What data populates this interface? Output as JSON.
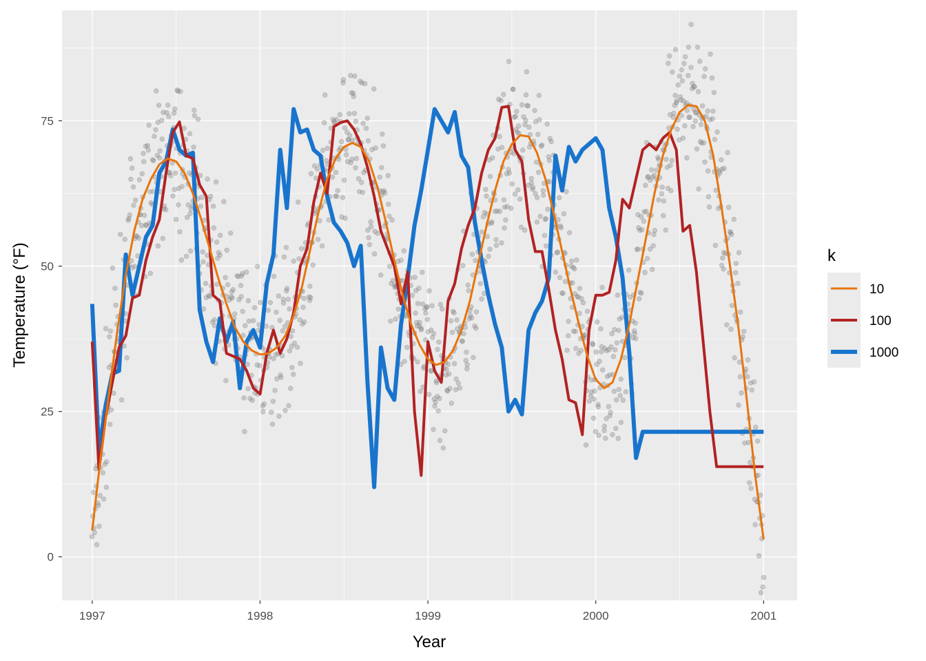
{
  "chart_data": {
    "type": "line",
    "title": "",
    "xlabel": "Year",
    "ylabel": "Temperature (°F)",
    "xlim": [
      1996.82,
      2001.2
    ],
    "ylim": [
      -7.5,
      94
    ],
    "x_ticks": [
      1997,
      1998,
      1999,
      2000,
      2001
    ],
    "x_tick_labels": [
      "1997",
      "1998",
      "1999",
      "2000",
      "2001"
    ],
    "y_ticks": [
      0,
      25,
      50,
      75
    ],
    "y_tick_labels": [
      "0",
      "25",
      "50",
      "75"
    ],
    "grid": true,
    "legend": {
      "title": "k",
      "placement": "right",
      "entries": [
        "10",
        "100",
        "1000"
      ]
    },
    "colors": {
      "panel": "#ebebeb",
      "grid_major": "#ffffff",
      "points": "#808080",
      "k10": "#e8740c",
      "k100": "#b22222",
      "k1000": "#1874cd"
    },
    "series": [
      {
        "name": "10",
        "color": "#e8740c",
        "x": [
          1997.0,
          1997.05,
          1997.1,
          1997.15,
          1997.2,
          1997.25,
          1997.3,
          1997.35,
          1997.4,
          1997.45,
          1997.5,
          1997.55,
          1997.6,
          1997.65,
          1997.7,
          1997.75,
          1997.8,
          1997.85,
          1997.9,
          1997.95,
          1998.0,
          1998.05,
          1998.1,
          1998.15,
          1998.2,
          1998.25,
          1998.3,
          1998.35,
          1998.4,
          1998.45,
          1998.5,
          1998.55,
          1998.6,
          1998.65,
          1998.7,
          1998.75,
          1998.8,
          1998.85,
          1998.9,
          1998.95,
          1999.0,
          1999.05,
          1999.1,
          1999.15,
          1999.2,
          1999.25,
          1999.3,
          1999.35,
          1999.4,
          1999.45,
          1999.5,
          1999.55,
          1999.6,
          1999.65,
          1999.7,
          1999.75,
          1999.8,
          1999.85,
          1999.9,
          1999.95,
          2000.0,
          2000.05,
          2000.1,
          2000.15,
          2000.2,
          2000.25,
          2000.3,
          2000.35,
          2000.4,
          2000.45,
          2000.5,
          2000.55,
          2000.6,
          2000.65,
          2000.7,
          2000.75,
          2000.8,
          2000.85,
          2000.9,
          2000.95,
          2001.0
        ],
        "values": [
          4.5,
          17,
          28,
          39,
          48.5,
          56,
          61.5,
          65,
          67.5,
          68.5,
          68,
          66,
          62.5,
          58,
          53,
          48,
          43.5,
          39.5,
          37,
          35.5,
          34.8,
          35,
          36,
          38,
          41.5,
          46.5,
          53,
          59.5,
          65,
          68.5,
          70.5,
          71.2,
          70.5,
          68,
          63.5,
          57.5,
          51,
          45,
          40,
          36.5,
          34,
          33,
          33.5,
          35.5,
          39,
          44,
          50.5,
          57,
          63,
          68,
          71,
          72.5,
          72.3,
          69.5,
          65,
          59,
          52.5,
          46,
          40,
          34.5,
          30.5,
          29,
          30,
          34,
          40,
          47.5,
          55,
          62.5,
          69,
          73.5,
          76.5,
          77.7,
          77.5,
          75,
          69,
          60,
          50,
          39.5,
          27,
          14,
          3
        ]
      },
      {
        "name": "100",
        "color": "#b22222",
        "x": [
          1997.0,
          1997.04,
          1997.08,
          1997.12,
          1997.16,
          1997.2,
          1997.24,
          1997.28,
          1997.32,
          1997.36,
          1997.4,
          1997.44,
          1997.48,
          1997.52,
          1997.56,
          1997.6,
          1997.64,
          1997.68,
          1997.72,
          1997.76,
          1997.8,
          1997.84,
          1997.88,
          1997.92,
          1997.96,
          1998.0,
          1998.04,
          1998.08,
          1998.12,
          1998.16,
          1998.2,
          1998.24,
          1998.28,
          1998.32,
          1998.36,
          1998.4,
          1998.44,
          1998.48,
          1998.52,
          1998.56,
          1998.6,
          1998.64,
          1998.68,
          1998.72,
          1998.76,
          1998.8,
          1998.84,
          1998.88,
          1998.92,
          1998.96,
          1999.0,
          1999.04,
          1999.08,
          1999.12,
          1999.16,
          1999.2,
          1999.24,
          1999.28,
          1999.32,
          1999.36,
          1999.4,
          1999.44,
          1999.48,
          1999.52,
          1999.56,
          1999.6,
          1999.64,
          1999.68,
          1999.72,
          1999.76,
          1999.8,
          1999.84,
          1999.88,
          1999.92,
          1999.96,
          2000.0,
          2000.04,
          2000.08,
          2000.12,
          2000.16,
          2000.2,
          2000.24,
          2000.28,
          2000.32,
          2000.36,
          2000.4,
          2000.44,
          2000.48,
          2000.52,
          2000.56,
          2000.6,
          2000.64,
          2000.68,
          2000.72,
          2000.76,
          2000.8,
          2000.84,
          2000.88,
          2000.92,
          2000.96,
          2001.0
        ],
        "values": [
          37,
          15,
          24,
          30,
          36,
          38,
          44.5,
          45,
          51,
          55,
          58,
          66,
          73,
          74.8,
          69,
          68.5,
          64,
          62,
          45,
          44,
          35,
          34.5,
          34,
          32,
          29,
          28,
          35,
          39,
          35,
          37.5,
          42,
          50,
          53,
          61,
          66,
          62.5,
          74,
          74.7,
          75,
          73.5,
          71,
          67,
          62,
          56,
          53,
          50,
          43.5,
          49,
          25,
          14,
          37,
          32,
          30,
          44,
          47,
          53,
          57,
          60,
          66,
          70,
          72,
          77.3,
          77.5,
          70,
          68,
          58,
          52.5,
          52.5,
          46,
          39,
          34,
          27,
          26.5,
          21,
          39,
          45,
          45,
          45.5,
          51,
          61.5,
          60,
          65,
          70,
          71,
          70,
          72,
          73,
          70,
          56,
          57,
          49,
          37,
          25,
          15.5,
          15.5,
          15.5,
          15.5,
          15.5,
          15.5,
          15.5,
          15.5
        ]
      },
      {
        "name": "1000",
        "color": "#1874cd",
        "x": [
          1997.0,
          1997.04,
          1997.08,
          1997.12,
          1997.16,
          1997.2,
          1997.24,
          1997.28,
          1997.32,
          1997.36,
          1997.4,
          1997.44,
          1997.48,
          1997.52,
          1997.56,
          1997.6,
          1997.64,
          1997.68,
          1997.72,
          1997.76,
          1997.8,
          1997.84,
          1997.88,
          1997.92,
          1997.96,
          1998.0,
          1998.04,
          1998.08,
          1998.12,
          1998.16,
          1998.2,
          1998.24,
          1998.28,
          1998.32,
          1998.36,
          1998.4,
          1998.44,
          1998.48,
          1998.52,
          1998.56,
          1998.6,
          1998.64,
          1998.68,
          1998.72,
          1998.76,
          1998.8,
          1998.84,
          1998.88,
          1998.92,
          1998.96,
          1999.0,
          1999.04,
          1999.08,
          1999.12,
          1999.16,
          1999.2,
          1999.24,
          1999.28,
          1999.32,
          1999.36,
          1999.4,
          1999.44,
          1999.48,
          1999.52,
          1999.56,
          1999.6,
          1999.64,
          1999.68,
          1999.72,
          1999.76,
          1999.8,
          1999.84,
          1999.88,
          1999.92,
          1999.96,
          2000.0,
          2000.04,
          2000.08,
          2000.12,
          2000.16,
          2000.2,
          2000.24,
          2000.28,
          2000.32,
          2000.36,
          2000.4,
          2000.44,
          2000.48,
          2000.52,
          2000.56,
          2000.6,
          2000.64,
          2000.68,
          2000.72,
          2000.76,
          2000.8,
          2000.84,
          2000.88,
          2000.92,
          2000.96,
          2001.0
        ],
        "values": [
          43.5,
          18,
          26,
          31.5,
          32,
          52,
          45,
          50,
          55,
          57,
          66,
          68,
          73.5,
          70,
          69,
          69.5,
          42.5,
          37,
          33.5,
          41,
          37,
          40.5,
          29,
          37,
          39,
          36,
          47,
          52,
          70,
          60,
          77,
          73,
          73.5,
          70,
          69,
          62,
          57.5,
          56,
          54,
          50,
          53.5,
          30,
          12,
          36,
          29,
          27,
          40,
          48,
          57,
          63,
          70,
          77,
          75,
          73,
          76.5,
          69,
          67,
          57.5,
          51,
          45,
          40,
          36,
          25,
          27,
          24.5,
          39,
          42,
          44,
          48,
          69,
          63,
          70.5,
          68,
          70,
          71,
          72,
          70,
          60,
          55,
          48,
          35,
          17,
          21.5,
          21.5,
          21.5,
          21.5,
          21.5,
          21.5,
          21.5,
          21.5,
          21.5,
          21.5,
          21.5,
          21.5,
          21.5,
          21.5,
          21.5,
          21.5,
          21.5,
          21.5,
          21.5
        ]
      }
    ]
  }
}
